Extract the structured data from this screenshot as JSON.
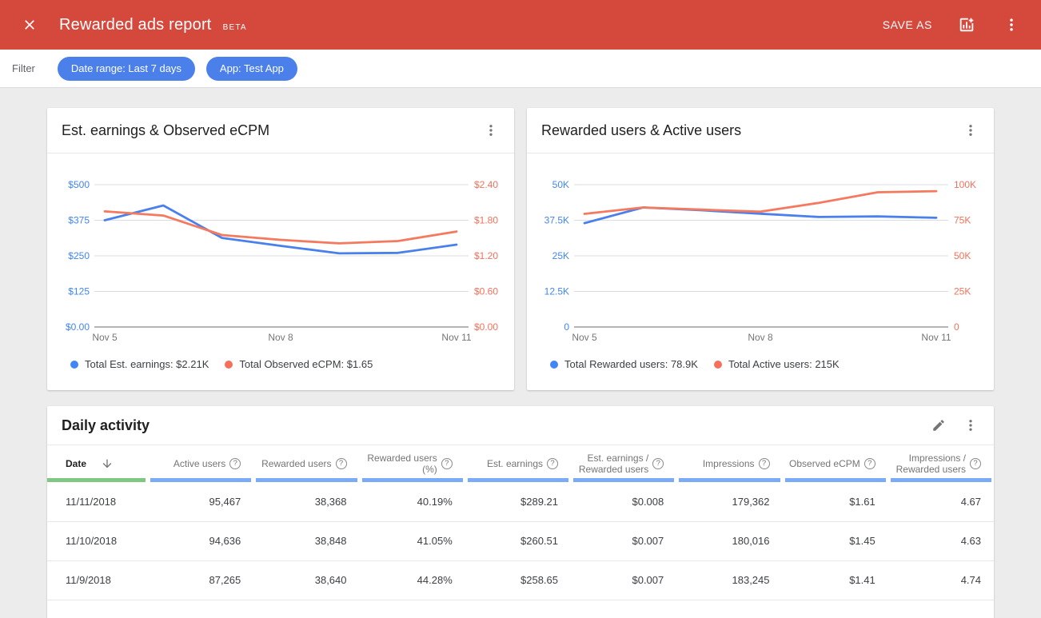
{
  "header": {
    "title": "Rewarded ads report",
    "beta": "BETA",
    "save_as": "SAVE AS"
  },
  "filter": {
    "label": "Filter",
    "chips": [
      {
        "id": "date-range",
        "label": "Date range: Last 7 days"
      },
      {
        "id": "app",
        "label": "App: Test App"
      }
    ]
  },
  "colors": {
    "appbar": "#d5493d",
    "chip": "#4b80ea",
    "grid": "#dadce0",
    "baseline": "#6b6b6b",
    "series_blue": "#4a80ec",
    "series_orange": "#f4795e",
    "legend_blue": "#4285f4",
    "legend_orange": "#f4705b",
    "underline_green": "#81c784",
    "underline_blue": "#7baaf7"
  },
  "chart_data": [
    {
      "type": "line",
      "title": "Est. earnings & Observed eCPM",
      "x": [
        "Nov 5",
        "Nov 6",
        "Nov 7",
        "Nov 8",
        "Nov 9",
        "Nov 10",
        "Nov 11"
      ],
      "x_tick_labels": [
        "Nov 5",
        "Nov 8",
        "Nov 11"
      ],
      "grid": true,
      "legend_position": "bottom",
      "left_axis": {
        "ticks": [
          "$0.00",
          "$125",
          "$250",
          "$375",
          "$500"
        ],
        "min": 0,
        "max": 500,
        "color": "#4285f4"
      },
      "right_axis": {
        "ticks": [
          "$0.00",
          "$0.60",
          "$1.20",
          "$1.80",
          "$2.40"
        ],
        "min": 0,
        "max": 2.4,
        "color": "#f4705b"
      },
      "series": [
        {
          "name": "Est. earnings",
          "axis": "left",
          "color": "#4a80ec",
          "values": [
            375,
            427,
            313,
            285,
            258.65,
            260.51,
            289.21
          ]
        },
        {
          "name": "Observed eCPM",
          "axis": "right",
          "color": "#f4795e",
          "values": [
            1.95,
            1.88,
            1.55,
            1.47,
            1.41,
            1.45,
            1.61
          ]
        }
      ],
      "legend": [
        {
          "color": "#4285f4",
          "label": "Total Est. earnings: $2.21K"
        },
        {
          "color": "#f4705b",
          "label": "Total Observed eCPM: $1.65"
        }
      ]
    },
    {
      "type": "line",
      "title": "Rewarded users & Active users",
      "x": [
        "Nov 5",
        "Nov 6",
        "Nov 7",
        "Nov 8",
        "Nov 9",
        "Nov 10",
        "Nov 11"
      ],
      "x_tick_labels": [
        "Nov 5",
        "Nov 8",
        "Nov 11"
      ],
      "grid": true,
      "legend_position": "bottom",
      "left_axis": {
        "ticks": [
          "0",
          "12.5K",
          "25K",
          "37.5K",
          "50K"
        ],
        "min": 0,
        "max": 50000,
        "color": "#4285f4"
      },
      "right_axis": {
        "ticks": [
          "0",
          "25K",
          "50K",
          "75K",
          "100K"
        ],
        "min": 0,
        "max": 100000,
        "color": "#f4705b"
      },
      "series": [
        {
          "name": "Rewarded users",
          "axis": "left",
          "color": "#4a80ec",
          "values": [
            36500,
            42000,
            41000,
            39800,
            38640,
            38848,
            38368
          ]
        },
        {
          "name": "Active users",
          "axis": "right",
          "color": "#f4795e",
          "values": [
            79500,
            84000,
            82500,
            81000,
            87265,
            94636,
            95467
          ]
        }
      ],
      "legend": [
        {
          "color": "#4285f4",
          "label": "Total Rewarded users: 78.9K"
        },
        {
          "color": "#f4705b",
          "label": "Total Active users: 215K"
        }
      ]
    }
  ],
  "table": {
    "title": "Daily activity",
    "columns": [
      {
        "id": "date",
        "label": "Date",
        "align": "left",
        "sort": "desc",
        "help": false,
        "underline": "#81c784"
      },
      {
        "id": "active-users",
        "label": "Active users",
        "align": "right",
        "help": true,
        "underline": "#7baaf7"
      },
      {
        "id": "rewarded-users",
        "label": "Rewarded users",
        "align": "right",
        "help": true,
        "underline": "#7baaf7"
      },
      {
        "id": "rewarded-users-pct",
        "label": "Rewarded users (%)",
        "align": "right",
        "help": true,
        "underline": "#7baaf7"
      },
      {
        "id": "est-earnings",
        "label": "Est. earnings",
        "align": "right",
        "help": true,
        "underline": "#7baaf7"
      },
      {
        "id": "est-earnings-per-rewarded-user",
        "label": "Est. earnings / Rewarded users",
        "align": "right",
        "help": true,
        "underline": "#7baaf7"
      },
      {
        "id": "impressions",
        "label": "Impressions",
        "align": "right",
        "help": true,
        "underline": "#7baaf7"
      },
      {
        "id": "observed-ecpm",
        "label": "Observed eCPM",
        "align": "right",
        "help": true,
        "underline": "#7baaf7"
      },
      {
        "id": "impressions-per-rewarded-user",
        "label": "Impressions / Rewarded users",
        "align": "right",
        "help": true,
        "underline": "#7baaf7"
      }
    ],
    "rows": [
      [
        "11/11/2018",
        "95,467",
        "38,368",
        "40.19%",
        "$289.21",
        "$0.008",
        "179,362",
        "$1.61",
        "4.67"
      ],
      [
        "11/10/2018",
        "94,636",
        "38,848",
        "41.05%",
        "$260.51",
        "$0.007",
        "180,016",
        "$1.45",
        "4.63"
      ],
      [
        "11/9/2018",
        "87,265",
        "38,640",
        "44.28%",
        "$258.65",
        "$0.007",
        "183,245",
        "$1.41",
        "4.74"
      ]
    ]
  }
}
